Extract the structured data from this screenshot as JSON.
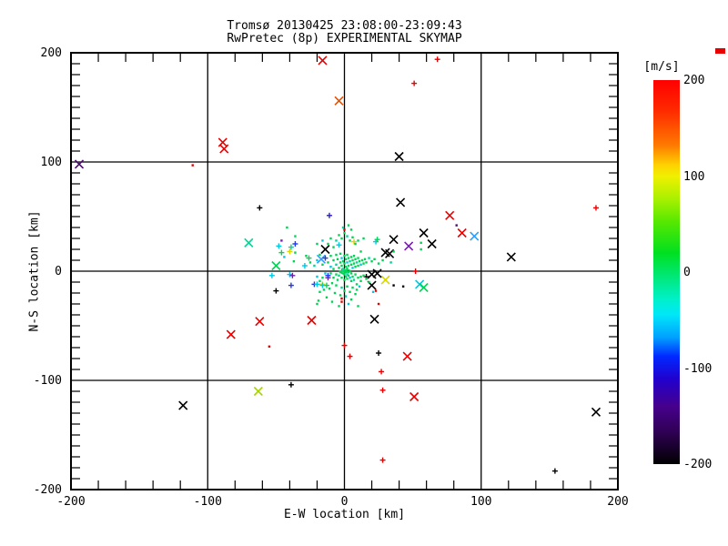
{
  "title": {
    "line1": "Tromsø 20130425 23:08:00-23:09:43",
    "line2": "RwPretec (8p) EXPERIMENTAL SKYMAP"
  },
  "chart_data": {
    "type": "scatter",
    "xlabel": "E-W location [km]",
    "ylabel": "N-S location [km]",
    "xlim": [
      -200,
      200
    ],
    "ylim": [
      -200,
      200
    ],
    "xticks": [
      -200,
      -100,
      0,
      100,
      200
    ],
    "yticks": [
      -200,
      -100,
      0,
      100,
      200
    ],
    "xtick_labels": [
      "-200",
      "-100",
      "0",
      "100",
      "200"
    ],
    "ytick_labels": [
      "-200",
      "-100",
      "0",
      "100",
      "200"
    ],
    "minor_x_step": 20,
    "minor_y_step": 10,
    "grid_lines": [
      -100,
      0,
      100
    ],
    "grid_on": true,
    "colorbar": {
      "label": "[m/s]",
      "ticks": [
        200,
        100,
        0,
        -100,
        -200
      ],
      "tick_labels": [
        "200",
        "100",
        "0",
        "-100",
        "-200"
      ],
      "stops": [
        {
          "pos": 0,
          "color": "#ff0000"
        },
        {
          "pos": 8,
          "color": "#ff2a00"
        },
        {
          "pos": 17,
          "color": "#ff7a00"
        },
        {
          "pos": 22,
          "color": "#ffd000"
        },
        {
          "pos": 25,
          "color": "#f0f000"
        },
        {
          "pos": 31,
          "color": "#a8f000"
        },
        {
          "pos": 37,
          "color": "#55e800"
        },
        {
          "pos": 45,
          "color": "#00e020"
        },
        {
          "pos": 50,
          "color": "#00e668"
        },
        {
          "pos": 57,
          "color": "#00f0c8"
        },
        {
          "pos": 61,
          "color": "#00e8f8"
        },
        {
          "pos": 67,
          "color": "#00a0ff"
        },
        {
          "pos": 72,
          "color": "#0028ff"
        },
        {
          "pos": 78,
          "color": "#2200cc"
        },
        {
          "pos": 85,
          "color": "#46008c"
        },
        {
          "pos": 92,
          "color": "#2e0050"
        },
        {
          "pos": 100,
          "color": "#000000"
        }
      ]
    },
    "palette": {
      "r": "#e80000",
      "o": "#e85000",
      "k": "#000000",
      "g": "#00d455",
      "t": "#00d495",
      "c": "#00c8e0",
      "s": "#2e9fff",
      "b": "#2238e8",
      "db": "#2a1fb0",
      "p": "#7a18b8",
      "dp": "#4a0d6e",
      "y": "#d8d800",
      "yg": "#a8d400"
    },
    "points": [
      [
        -16,
        193,
        "r",
        "x"
      ],
      [
        -4,
        156,
        "o",
        "x"
      ],
      [
        -89,
        118,
        "r",
        "x"
      ],
      [
        -88,
        112,
        "r",
        "x"
      ],
      [
        -194,
        98,
        "dp",
        "x"
      ],
      [
        40,
        105,
        "k",
        "x"
      ],
      [
        41,
        63,
        "k",
        "x"
      ],
      [
        77,
        51,
        "r",
        "x"
      ],
      [
        86,
        35,
        "r",
        "x"
      ],
      [
        95,
        32,
        "s",
        "x"
      ],
      [
        58,
        35,
        "k",
        "x"
      ],
      [
        64,
        25,
        "k",
        "x"
      ],
      [
        36,
        29,
        "k",
        "x"
      ],
      [
        47,
        23,
        "p",
        "x"
      ],
      [
        30,
        17,
        "k",
        "x"
      ],
      [
        33,
        16,
        "k",
        "x"
      ],
      [
        122,
        13,
        "k",
        "x"
      ],
      [
        -70,
        26,
        "t",
        "x"
      ],
      [
        -14,
        20,
        "k",
        "x"
      ],
      [
        -17,
        11,
        "s",
        "x"
      ],
      [
        -50,
        5,
        "g",
        "x"
      ],
      [
        -62,
        -46,
        "r",
        "x"
      ],
      [
        -24,
        -45,
        "r",
        "x"
      ],
      [
        -83,
        -58,
        "r",
        "x"
      ],
      [
        -63,
        -110,
        "yg",
        "x"
      ],
      [
        -118,
        -123,
        "k",
        "x"
      ],
      [
        22,
        -44,
        "k",
        "x"
      ],
      [
        30,
        -8,
        "y",
        "x"
      ],
      [
        20,
        -13,
        "k",
        "x"
      ],
      [
        55,
        -12,
        "c",
        "x"
      ],
      [
        58,
        -15,
        "g",
        "x"
      ],
      [
        46,
        -78,
        "r",
        "x"
      ],
      [
        51,
        -115,
        "r",
        "x"
      ],
      [
        184,
        -129,
        "k",
        "x"
      ],
      [
        20,
        -3,
        "k",
        "x"
      ],
      [
        24,
        -2,
        "k",
        "x"
      ],
      [
        68,
        194,
        "r",
        "+"
      ],
      [
        51,
        172,
        "r",
        "+"
      ],
      [
        -111,
        97,
        "r",
        "."
      ],
      [
        -62,
        58,
        "k",
        "+"
      ],
      [
        -11,
        51,
        "db",
        "+"
      ],
      [
        184,
        58,
        "r",
        "+"
      ],
      [
        82,
        42,
        "dp",
        "."
      ],
      [
        0,
        38,
        "r",
        "."
      ],
      [
        52,
        0,
        "r",
        "+"
      ],
      [
        -39,
        -104,
        "k",
        "+"
      ],
      [
        0,
        -68,
        "r",
        "+"
      ],
      [
        -55,
        -69,
        "r",
        "."
      ],
      [
        4,
        -78,
        "r",
        "+"
      ],
      [
        25,
        -75,
        "k",
        "+"
      ],
      [
        27,
        -92,
        "r",
        "+"
      ],
      [
        28,
        -109,
        "r",
        "+"
      ],
      [
        28,
        -173,
        "r",
        "+"
      ],
      [
        154,
        -183,
        "k",
        "+"
      ],
      [
        16,
        -5,
        "k",
        "+"
      ],
      [
        36,
        -13,
        "k",
        "."
      ],
      [
        43,
        -14,
        "k",
        "."
      ],
      [
        21,
        -19,
        "c",
        "."
      ],
      [
        23,
        -18,
        "r",
        "."
      ],
      [
        25,
        -30,
        "r",
        "."
      ],
      [
        -2,
        -25,
        "r",
        "."
      ],
      [
        -2,
        -28,
        "r",
        "."
      ],
      [
        34,
        8,
        "t",
        "."
      ],
      [
        56,
        26,
        "g",
        "."
      ],
      [
        56,
        20,
        "g",
        "."
      ],
      [
        36,
        18,
        "g",
        "."
      ],
      [
        14,
        30,
        "g",
        "."
      ],
      [
        7,
        27,
        "y",
        "+"
      ],
      [
        23,
        27,
        "c",
        "+"
      ],
      [
        12,
        18,
        "g",
        "."
      ],
      [
        -42,
        40,
        "g",
        "."
      ],
      [
        -36,
        32,
        "g",
        "."
      ],
      [
        -46,
        28,
        "p",
        "."
      ],
      [
        -48,
        23,
        "c",
        "+"
      ],
      [
        -36,
        25,
        "b",
        "+"
      ],
      [
        -39,
        22,
        "t",
        "+"
      ],
      [
        -40,
        18,
        "y",
        "+"
      ],
      [
        -46,
        17,
        "g",
        "+"
      ],
      [
        -36,
        17,
        "g",
        "."
      ],
      [
        -44,
        13,
        "c",
        "."
      ],
      [
        -37,
        9,
        "g",
        "."
      ],
      [
        -29,
        5,
        "c",
        "+"
      ],
      [
        -26,
        12,
        "g",
        "+"
      ],
      [
        -40,
        -3,
        "c",
        "+"
      ],
      [
        -53,
        -4,
        "c",
        "+"
      ],
      [
        -38,
        -4,
        "p",
        "+"
      ],
      [
        -39,
        -13,
        "b",
        "+"
      ],
      [
        -50,
        -18,
        "k",
        "+"
      ],
      [
        -22,
        -12,
        "b",
        "+"
      ],
      [
        -20,
        -12,
        "c",
        "+"
      ],
      [
        -16,
        -12,
        "y",
        "+"
      ],
      [
        -13,
        -13,
        "g",
        "+"
      ],
      [
        -18,
        -19,
        "g",
        "."
      ],
      [
        -19,
        -27,
        "g",
        "."
      ],
      [
        -20,
        -30,
        "g",
        "."
      ],
      [
        -16,
        -13,
        "c",
        "+"
      ],
      [
        -12,
        -6,
        "p",
        "+"
      ],
      [
        -20,
        25,
        "g",
        "."
      ],
      [
        -16,
        28,
        "c",
        "."
      ],
      [
        -12,
        25,
        "g",
        "."
      ],
      [
        -10,
        30,
        "g",
        "."
      ],
      [
        -8,
        22,
        "g",
        "."
      ],
      [
        -6,
        28,
        "t",
        "."
      ],
      [
        -4,
        33,
        "g",
        "."
      ],
      [
        -2,
        30,
        "g",
        "."
      ],
      [
        0,
        35,
        "g",
        "."
      ],
      [
        2,
        32,
        "t",
        "."
      ],
      [
        4,
        28,
        "g",
        "."
      ],
      [
        6,
        31,
        "g",
        "."
      ],
      [
        8,
        25,
        "g",
        "."
      ],
      [
        10,
        28,
        "g",
        "."
      ],
      [
        3,
        42,
        "g",
        "."
      ],
      [
        -1,
        40,
        "t",
        "."
      ],
      [
        5,
        38,
        "g",
        "."
      ],
      [
        -4,
        24,
        "c",
        "+"
      ],
      [
        24,
        29,
        "g",
        "+"
      ],
      [
        -28,
        14,
        "g",
        "."
      ],
      [
        -25,
        8,
        "g",
        "."
      ],
      [
        -22,
        5,
        "t",
        "."
      ],
      [
        -20,
        10,
        "c",
        "."
      ],
      [
        -18,
        15,
        "g",
        "."
      ],
      [
        -16,
        6,
        "g",
        "."
      ],
      [
        -14,
        12,
        "b",
        "+"
      ],
      [
        -12,
        8,
        "g",
        "."
      ],
      [
        -10,
        14,
        "g",
        "."
      ],
      [
        -10,
        4,
        "c",
        "."
      ],
      [
        -8,
        10,
        "g",
        "."
      ],
      [
        -8,
        2,
        "g",
        "."
      ],
      [
        -6,
        15,
        "g",
        "."
      ],
      [
        -6,
        6,
        "t",
        "."
      ],
      [
        -5,
        11,
        "g",
        "."
      ],
      [
        -4,
        3,
        "g",
        "."
      ],
      [
        -3,
        16,
        "g",
        "."
      ],
      [
        -3,
        8,
        "g",
        "."
      ],
      [
        -2,
        12,
        "c",
        "."
      ],
      [
        -2,
        5,
        "g",
        "."
      ],
      [
        -1,
        9,
        "g",
        "."
      ],
      [
        -1,
        2,
        "t",
        "."
      ],
      [
        0,
        14,
        "g",
        "."
      ],
      [
        0,
        7,
        "g",
        "."
      ],
      [
        1,
        11,
        "g",
        "."
      ],
      [
        1,
        4,
        "g",
        "."
      ],
      [
        2,
        15,
        "g",
        "."
      ],
      [
        2,
        8,
        "c",
        "."
      ],
      [
        2,
        2,
        "g",
        "."
      ],
      [
        3,
        12,
        "g",
        "."
      ],
      [
        3,
        5,
        "g",
        "."
      ],
      [
        4,
        9,
        "t",
        "."
      ],
      [
        5,
        13,
        "g",
        "."
      ],
      [
        5,
        6,
        "g",
        "."
      ],
      [
        6,
        10,
        "g",
        "."
      ],
      [
        6,
        3,
        "c",
        "."
      ],
      [
        7,
        14,
        "g",
        "."
      ],
      [
        7,
        7,
        "g",
        "."
      ],
      [
        8,
        11,
        "g",
        "."
      ],
      [
        8,
        4,
        "g",
        "."
      ],
      [
        9,
        8,
        "t",
        "."
      ],
      [
        10,
        12,
        "g",
        "."
      ],
      [
        10,
        5,
        "g",
        "."
      ],
      [
        11,
        9,
        "g",
        "."
      ],
      [
        12,
        6,
        "c",
        "."
      ],
      [
        13,
        10,
        "g",
        "."
      ],
      [
        14,
        7,
        "g",
        "."
      ],
      [
        15,
        11,
        "g",
        "."
      ],
      [
        16,
        8,
        "g",
        "."
      ],
      [
        18,
        12,
        "t",
        "."
      ],
      [
        20,
        9,
        "g",
        "."
      ],
      [
        22,
        11,
        "g",
        "."
      ],
      [
        25,
        7,
        "g",
        "."
      ],
      [
        28,
        10,
        "g",
        "."
      ],
      [
        -2,
        0,
        "g",
        "+"
      ],
      [
        0,
        0,
        "g",
        "+"
      ],
      [
        1,
        -1,
        "g",
        "."
      ],
      [
        2,
        1,
        "g",
        "+"
      ],
      [
        -1,
        -2,
        "g",
        "."
      ],
      [
        3,
        -1,
        "g",
        "."
      ],
      [
        0,
        -3,
        "g",
        "."
      ],
      [
        2,
        -3,
        "c",
        "."
      ],
      [
        4,
        0,
        "g",
        "."
      ],
      [
        -3,
        -1,
        "g",
        "."
      ],
      [
        -4,
        -4,
        "t",
        "."
      ],
      [
        1,
        -5,
        "g",
        "."
      ],
      [
        3,
        -4,
        "g",
        "."
      ],
      [
        5,
        -2,
        "g",
        "."
      ],
      [
        -2,
        -6,
        "g",
        "."
      ],
      [
        0,
        -8,
        "g",
        "."
      ],
      [
        2,
        -7,
        "g",
        "."
      ],
      [
        4,
        -6,
        "c",
        "."
      ],
      [
        -6,
        -3,
        "g",
        "."
      ],
      [
        -8,
        -6,
        "g",
        "."
      ],
      [
        6,
        -5,
        "g",
        "."
      ],
      [
        8,
        -3,
        "g",
        "."
      ],
      [
        -10,
        -2,
        "g",
        "."
      ],
      [
        -5,
        -8,
        "g",
        "."
      ],
      [
        5,
        -9,
        "g",
        "."
      ],
      [
        7,
        -8,
        "t",
        "."
      ],
      [
        -12,
        -4,
        "b",
        "+"
      ],
      [
        -14,
        -2,
        "c",
        "."
      ],
      [
        10,
        -6,
        "g",
        "."
      ],
      [
        12,
        -9,
        "g",
        "."
      ],
      [
        -16,
        -6,
        "g",
        "."
      ],
      [
        14,
        -4,
        "g",
        "."
      ],
      [
        -18,
        -9,
        "g",
        "."
      ],
      [
        16,
        -7,
        "g",
        "."
      ],
      [
        -20,
        -5,
        "c",
        "."
      ],
      [
        18,
        -10,
        "g",
        "."
      ],
      [
        9,
        -12,
        "g",
        "."
      ],
      [
        -9,
        -11,
        "g",
        "."
      ],
      [
        -6,
        -13,
        "g",
        "."
      ],
      [
        -2,
        -15,
        "t",
        "."
      ],
      [
        2,
        -14,
        "g",
        "."
      ],
      [
        6,
        -15,
        "g",
        "."
      ],
      [
        -11,
        -16,
        "g",
        "."
      ],
      [
        11,
        -14,
        "c",
        "."
      ],
      [
        -15,
        -17,
        "g",
        "."
      ],
      [
        0,
        -18,
        "g",
        "."
      ],
      [
        4,
        -19,
        "g",
        "."
      ],
      [
        -7,
        -20,
        "g",
        "."
      ],
      [
        8,
        -21,
        "g",
        "."
      ],
      [
        -3,
        -22,
        "g",
        "."
      ],
      [
        1,
        -23,
        "t",
        "."
      ],
      [
        -13,
        -24,
        "g",
        "."
      ],
      [
        5,
        -26,
        "g",
        "."
      ],
      [
        -9,
        -28,
        "g",
        "."
      ],
      [
        3,
        -30,
        "c",
        "."
      ],
      [
        -4,
        -32,
        "g",
        "."
      ],
      [
        9,
        -17,
        "g",
        "."
      ],
      [
        10,
        -32,
        "g",
        "."
      ],
      [
        12,
        -5,
        "g",
        "."
      ]
    ]
  }
}
